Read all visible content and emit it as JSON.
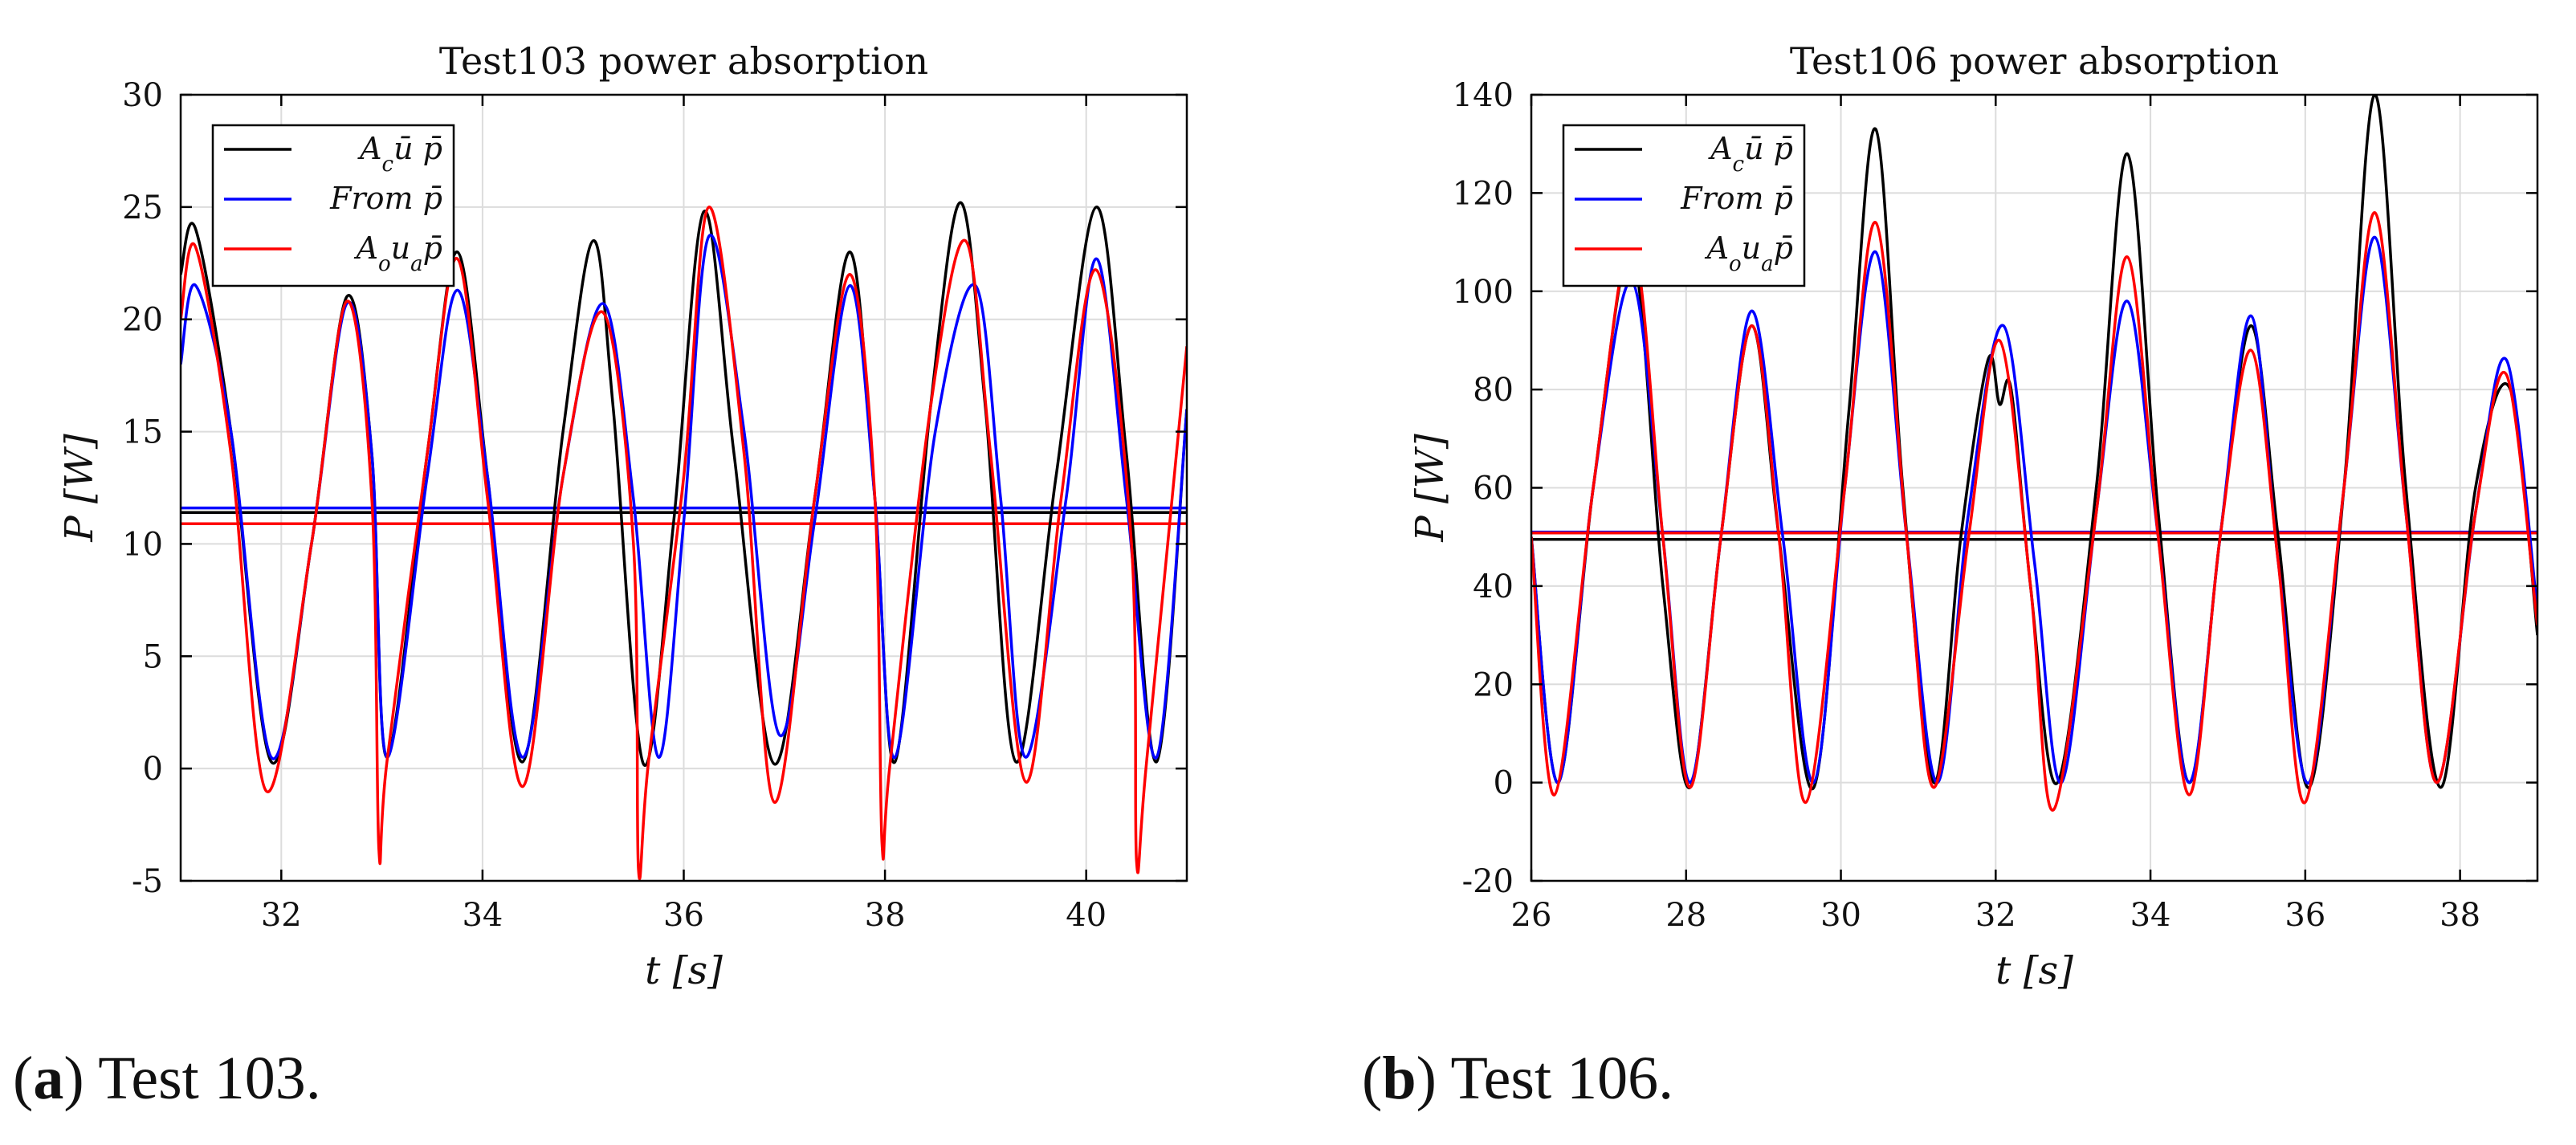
{
  "chart_data": [
    {
      "type": "line",
      "title": "Test103 power absorption",
      "xlabel": "t [s]",
      "ylabel": "P [W]",
      "xlim": [
        31,
        41
      ],
      "ylim": [
        -5,
        30
      ],
      "xticks": [
        32,
        34,
        36,
        38,
        40
      ],
      "yticks": [
        -5,
        0,
        5,
        10,
        15,
        20,
        25,
        30
      ],
      "grid": true,
      "legend_position": "top-left",
      "series": [
        {
          "name": "A_c ū p̄",
          "legend_base": "A",
          "legend_sub": "c",
          "legend_rest": "ū p̄",
          "color": "#000000",
          "x": [
            31.0,
            31.15,
            31.5,
            31.9,
            32.3,
            32.65,
            32.9,
            33.05,
            33.45,
            33.75,
            34.05,
            34.4,
            34.8,
            35.1,
            35.3,
            35.6,
            35.9,
            36.2,
            36.5,
            36.9,
            37.3,
            37.65,
            37.9,
            38.1,
            38.45,
            38.75,
            39.0,
            39.3,
            39.7,
            40.1,
            40.4,
            40.7,
            41.0
          ],
          "y": [
            22,
            24,
            15,
            0.3,
            10,
            21,
            14,
            0.5,
            14,
            23,
            13,
            0.3,
            15,
            23.5,
            16,
            0.2,
            11,
            24.8,
            14,
            0.2,
            12,
            23,
            12,
            0.3,
            16,
            25.2,
            16,
            0.3,
            13,
            25,
            14,
            0.3,
            16
          ],
          "mean": 11.4
        },
        {
          "name": "From p̄",
          "legend_base": "From p̄",
          "legend_sub": "",
          "legend_rest": "",
          "color": "#0000ff",
          "x": [
            31.0,
            31.15,
            31.5,
            31.9,
            32.3,
            32.65,
            32.9,
            33.05,
            33.45,
            33.75,
            34.05,
            34.4,
            34.8,
            35.2,
            35.5,
            35.75,
            36.0,
            36.25,
            36.6,
            36.95,
            37.3,
            37.65,
            37.9,
            38.1,
            38.5,
            38.9,
            39.15,
            39.4,
            39.8,
            40.1,
            40.4,
            40.7,
            41.0
          ],
          "y": [
            18,
            21.5,
            15,
            0.5,
            10,
            20.7,
            14,
            0.5,
            13,
            21.3,
            13,
            0.5,
            13,
            20.7,
            12,
            0.5,
            11,
            23.7,
            15,
            1.5,
            11,
            21.5,
            12,
            0.5,
            15,
            21.5,
            12,
            0.5,
            12,
            22.7,
            12,
            0.5,
            16
          ],
          "mean": 11.6
        },
        {
          "name": "A_o u_a p̄",
          "legend_base": "A",
          "legend_sub": "o",
          "legend_rest": "u",
          "legend_sub2": "a",
          "legend_rest2": "p̄",
          "color": "#ff0000",
          "x": [
            31.0,
            31.15,
            31.5,
            31.85,
            32.3,
            32.65,
            32.9,
            32.97,
            33.05,
            33.45,
            33.75,
            34.05,
            34.4,
            34.8,
            35.2,
            35.5,
            35.55,
            35.65,
            36.0,
            36.25,
            36.6,
            36.9,
            37.3,
            37.65,
            37.9,
            37.97,
            38.05,
            38.45,
            38.8,
            39.05,
            39.4,
            39.75,
            40.1,
            40.45,
            40.5,
            40.6,
            41.0
          ],
          "y": [
            20,
            23.2,
            14,
            -1.0,
            10,
            20.8,
            12,
            -3.6,
            0.3,
            14,
            22.7,
            12,
            -0.8,
            13,
            20.3,
            10,
            -4.5,
            0.3,
            13,
            25,
            14,
            -1.5,
            12,
            22,
            12,
            -3.3,
            0.2,
            16,
            23.5,
            14,
            -0.6,
            12,
            22.2,
            10,
            -4.1,
            0.3,
            18.8
          ],
          "mean": 10.9
        }
      ]
    },
    {
      "type": "line",
      "title": "Test106 power absorption",
      "xlabel": "t [s]",
      "ylabel": "P [W]",
      "xlim": [
        26,
        39
      ],
      "ylim": [
        -20,
        140
      ],
      "xticks": [
        26,
        28,
        30,
        32,
        34,
        36,
        38
      ],
      "yticks": [
        -20,
        0,
        20,
        40,
        60,
        80,
        100,
        120,
        140
      ],
      "grid": true,
      "legend_position": "top-left",
      "series": [
        {
          "name": "A_c ū p̄",
          "legend_base": "A",
          "legend_sub": "c",
          "legend_rest": "ū p̄",
          "color": "#000000",
          "x": [
            26.0,
            26.35,
            26.8,
            27.3,
            27.7,
            28.05,
            28.45,
            28.85,
            29.2,
            29.65,
            30.1,
            30.45,
            30.8,
            31.2,
            31.55,
            31.9,
            32.05,
            32.2,
            32.45,
            32.8,
            33.3,
            33.7,
            34.1,
            34.5,
            34.9,
            35.3,
            35.65,
            36.05,
            36.5,
            36.9,
            37.3,
            37.75,
            38.2,
            38.65,
            39.0
          ],
          "y": [
            50,
            0,
            60,
            108,
            40,
            -1,
            50,
            93,
            50,
            -1,
            75,
            133,
            60,
            0,
            50,
            86,
            77,
            80,
            40,
            0,
            60,
            128,
            55,
            0,
            50,
            93,
            50,
            -1,
            60,
            140,
            60,
            -1,
            60,
            80,
            30
          ],
          "mean": 49.5
        },
        {
          "name": "From p̄",
          "legend_base": "From p̄",
          "legend_sub": "",
          "legend_rest": "",
          "color": "#0000ff",
          "x": [
            26.0,
            26.35,
            26.8,
            27.3,
            27.7,
            28.05,
            28.45,
            28.85,
            29.25,
            29.65,
            30.05,
            30.45,
            30.85,
            31.25,
            31.65,
            32.1,
            32.5,
            32.85,
            33.3,
            33.7,
            34.1,
            34.5,
            34.9,
            35.3,
            35.65,
            36.05,
            36.5,
            36.9,
            37.3,
            37.7,
            38.2,
            38.6,
            39.0
          ],
          "y": [
            50,
            0,
            60,
            102,
            50,
            0,
            50,
            96,
            50,
            0,
            60,
            108,
            50,
            0,
            55,
            93,
            45,
            0,
            55,
            98,
            50,
            0,
            50,
            95,
            45,
            0,
            60,
            111,
            55,
            0,
            55,
            86,
            35
          ],
          "mean": 51.0
        },
        {
          "name": "A_o u_a p̄",
          "legend_base": "A",
          "legend_sub": "o",
          "legend_rest": "u",
          "legend_sub2": "a",
          "legend_rest2": "p̄",
          "color": "#ff0000",
          "x": [
            26.0,
            26.3,
            26.8,
            27.3,
            27.7,
            28.05,
            28.45,
            28.85,
            29.2,
            29.55,
            30.05,
            30.45,
            30.85,
            31.2,
            31.65,
            32.05,
            32.45,
            32.75,
            33.3,
            33.7,
            34.1,
            34.5,
            34.9,
            35.3,
            35.65,
            36.0,
            36.5,
            36.9,
            37.3,
            37.7,
            38.2,
            38.6,
            39.0
          ],
          "y": [
            50,
            -2.5,
            60,
            110,
            50,
            -1,
            50,
            93,
            50,
            -4,
            60,
            114,
            50,
            -1,
            50,
            90,
            40,
            -5.5,
            55,
            107,
            50,
            -2.5,
            50,
            88,
            45,
            -4,
            60,
            116,
            55,
            0,
            55,
            83,
            32
          ],
          "mean": 50.8
        }
      ]
    }
  ],
  "captions": [
    {
      "label": "(a)",
      "letter": "a",
      "text": "Test 103."
    },
    {
      "label": "(b)",
      "letter": "b",
      "text": "Test 106."
    }
  ]
}
